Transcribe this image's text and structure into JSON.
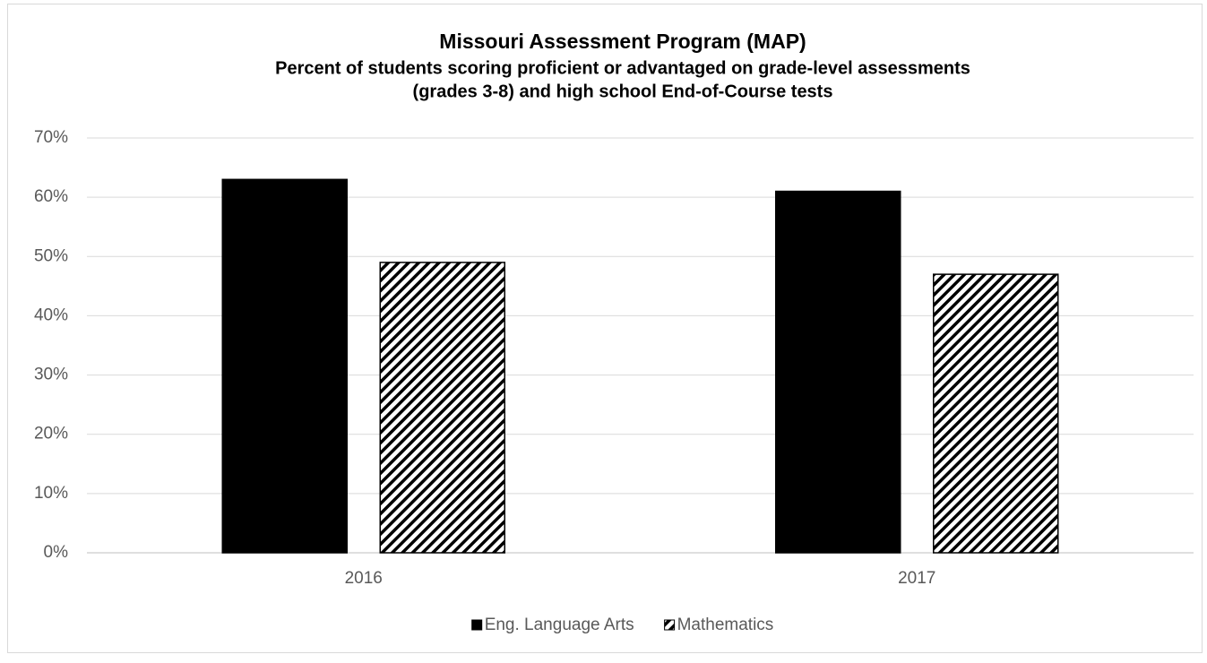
{
  "chart_data": {
    "type": "bar",
    "title": "Missouri Assessment Program (MAP)",
    "subtitle": [
      "Percent of students scoring proficient or advantaged on grade-level assessments",
      "(grades 3-8) and high school End-of-Course tests"
    ],
    "categories": [
      "2016",
      "2017"
    ],
    "series": [
      {
        "name": "Eng. Language Arts",
        "color": "#000000",
        "fill": "solid",
        "values": [
          63,
          61
        ]
      },
      {
        "name": "Mathematics",
        "color": "#000000",
        "fill": "hatch",
        "values": [
          49,
          47
        ]
      }
    ],
    "ylim": [
      0,
      70
    ],
    "yticks": [
      {
        "value": 0,
        "label": "0%"
      },
      {
        "value": 10,
        "label": "10%"
      },
      {
        "value": 20,
        "label": "20%"
      },
      {
        "value": 30,
        "label": "30%"
      },
      {
        "value": 40,
        "label": "40%"
      },
      {
        "value": 50,
        "label": "50%"
      },
      {
        "value": 60,
        "label": "60%"
      },
      {
        "value": 70,
        "label": "70%"
      }
    ],
    "grid": true,
    "legend": "bottom"
  }
}
